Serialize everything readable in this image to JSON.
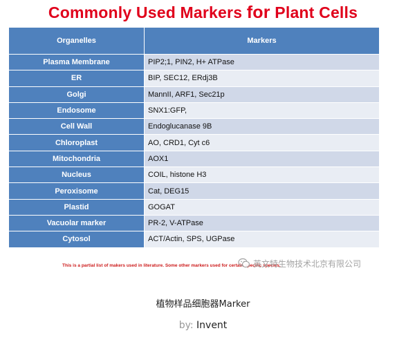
{
  "title_main": "Commonly Used Markers ",
  "title_for": "for",
  "title_end": " Plant Cells",
  "table": {
    "headers": [
      "Organelles",
      "Markers"
    ],
    "rows": [
      {
        "organelle": "Plasma Membrane",
        "markers": "PIP2;1, PIN2, H+ ATPase"
      },
      {
        "organelle": "ER",
        "markers": "BIP, SEC12, ERdj3B"
      },
      {
        "organelle": "Golgi",
        "markers": "MannII, ARF1, Sec21p"
      },
      {
        "organelle": "Endosome",
        "markers": "SNX1:GFP,"
      },
      {
        "organelle": "Cell Wall",
        "markers": "Endoglucanase 9B"
      },
      {
        "organelle": "Chloroplast",
        "markers": "AO, CRD1, Cyt c6"
      },
      {
        "organelle": "Mitochondria",
        "markers": "AOX1"
      },
      {
        "organelle": "Nucleus",
        "markers": "COIL, histone H3"
      },
      {
        "organelle": "Peroxisome",
        "markers": "Cat, DEG15"
      },
      {
        "organelle": "Plastid",
        "markers": "GOGAT"
      },
      {
        "organelle": "Vacuolar marker",
        "markers": "PR-2, V-ATPase"
      },
      {
        "organelle": "Cytosol",
        "markers": "ACT/Actin, SPS, UGPase"
      }
    ]
  },
  "footnote": "This is a partial list of makers  used in literature.  Some other markers used for certain specific species.",
  "watermark": "英文特生物技术北京有限公司",
  "caption": "植物样品细胞器Marker",
  "byline": {
    "by": "by:",
    "author": "Invent"
  },
  "colors": {
    "title": "#e0001b",
    "header": "#4f81bd",
    "row_odd": "#d0d8e8",
    "row_even": "#e9edf4",
    "footnote": "#cc1a1a"
  }
}
